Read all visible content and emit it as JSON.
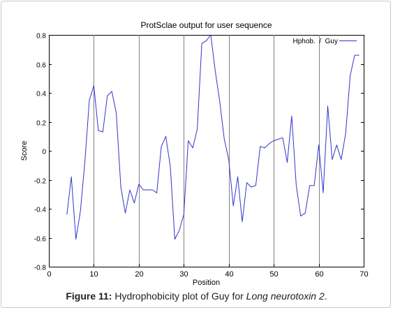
{
  "chart_data": {
    "type": "line",
    "title": "ProtSclae output for user sequence",
    "xlabel": "Position",
    "ylabel": "Score",
    "xlim": [
      0,
      70
    ],
    "ylim": [
      -0.8,
      0.8
    ],
    "x_ticks": [
      "0",
      "10",
      "20",
      "30",
      "40",
      "50",
      "60",
      "70"
    ],
    "y_ticks": [
      "-0.8",
      "-0.6",
      "-0.4",
      "-0.2",
      "0",
      "0.2",
      "0.4",
      "0.6",
      "0.8"
    ],
    "grid": "vertical",
    "legend_position": "top-right",
    "series": [
      {
        "name": "Hphob.  /  Guy",
        "color": "#3333cc",
        "points": [
          [
            4,
            -0.44
          ],
          [
            5,
            -0.18
          ],
          [
            6,
            -0.61
          ],
          [
            7,
            -0.42
          ],
          [
            8,
            -0.08
          ],
          [
            9,
            0.35
          ],
          [
            10,
            0.45
          ],
          [
            11,
            0.14
          ],
          [
            12,
            0.13
          ],
          [
            13,
            0.38
          ],
          [
            14,
            0.41
          ],
          [
            15,
            0.26
          ],
          [
            16,
            -0.25
          ],
          [
            17,
            -0.43
          ],
          [
            18,
            -0.27
          ],
          [
            19,
            -0.36
          ],
          [
            20,
            -0.23
          ],
          [
            21,
            -0.27
          ],
          [
            22,
            -0.27
          ],
          [
            23,
            -0.27
          ],
          [
            24,
            -0.29
          ],
          [
            25,
            0.03
          ],
          [
            26,
            0.1
          ],
          [
            27,
            -0.11
          ],
          [
            28,
            -0.61
          ],
          [
            29,
            -0.55
          ],
          [
            30,
            -0.44
          ],
          [
            31,
            0.07
          ],
          [
            32,
            0.02
          ],
          [
            33,
            0.15
          ],
          [
            34,
            0.74
          ],
          [
            35,
            0.76
          ],
          [
            36,
            0.8
          ],
          [
            37,
            0.55
          ],
          [
            38,
            0.34
          ],
          [
            39,
            0.08
          ],
          [
            40,
            -0.06
          ],
          [
            41,
            -0.38
          ],
          [
            42,
            -0.18
          ],
          [
            43,
            -0.49
          ],
          [
            44,
            -0.22
          ],
          [
            45,
            -0.25
          ],
          [
            46,
            -0.24
          ],
          [
            47,
            0.03
          ],
          [
            48,
            0.02
          ],
          [
            49,
            0.05
          ],
          [
            50,
            0.07
          ],
          [
            51,
            0.08
          ],
          [
            52,
            0.09
          ],
          [
            53,
            -0.08
          ],
          [
            54,
            0.24
          ],
          [
            55,
            -0.24
          ],
          [
            56,
            -0.45
          ],
          [
            57,
            -0.43
          ],
          [
            58,
            -0.24
          ],
          [
            59,
            -0.24
          ],
          [
            60,
            0.04
          ],
          [
            61,
            -0.29
          ],
          [
            62,
            0.31
          ],
          [
            63,
            -0.06
          ],
          [
            64,
            0.04
          ],
          [
            65,
            -0.06
          ],
          [
            66,
            0.12
          ],
          [
            67,
            0.52
          ],
          [
            68,
            0.66
          ],
          [
            69,
            0.66
          ]
        ]
      }
    ]
  },
  "caption": {
    "label": "Figure 11:",
    "text": " Hydrophobicity plot of Guy for ",
    "emphasis": "Long neurotoxin 2",
    "end": "."
  }
}
